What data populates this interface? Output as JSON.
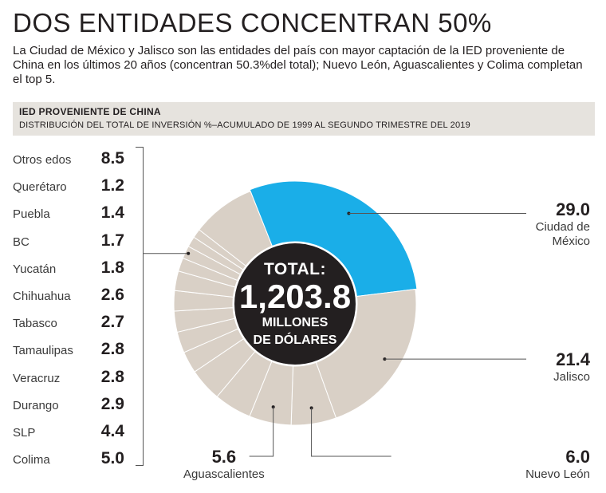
{
  "header": {
    "title": "DOS ENTIDADES CONCENTRAN 50%",
    "subtitle": "La Ciudad de México y Jalisco son las entidades del país con mayor captación de la IED proveniente de China en los últimos 20 años (concentran 50.3%del total); Nuevo León, Aguascalientes y Colima completan el top 5."
  },
  "band": {
    "title": "IED PROVENIENTE DE CHINA",
    "subtitle": "DISTRIBUCIÓN DEL TOTAL DE INVERSIÓN %–ACUMULADO DE 1999 AL SEGUNDO TRIMESTRE DEL 2019"
  },
  "center": {
    "line1": "TOTAL:",
    "line2": "1,203.8",
    "line3": "MILLONES",
    "line4": "DE DÓLARES"
  },
  "colors": {
    "highlight": "#1aaee8",
    "slice": "#d9d0c6",
    "center": "#231f20",
    "stroke": "#ffffff"
  },
  "chart_data": {
    "type": "pie",
    "unit": "%",
    "slices": [
      {
        "label": "Ciudad de México",
        "value": 29.0,
        "display": "29.0"
      },
      {
        "label": "Jalisco",
        "value": 21.4,
        "display": "21.4"
      },
      {
        "label": "Nuevo León",
        "value": 6.0,
        "display": "6.0"
      },
      {
        "label": "Aguascalientes",
        "value": 5.6,
        "display": "5.6"
      },
      {
        "label": "Colima",
        "value": 5.0,
        "display": "5.0"
      },
      {
        "label": "SLP",
        "value": 4.4,
        "display": "4.4"
      },
      {
        "label": "Durango",
        "value": 2.9,
        "display": "2.9"
      },
      {
        "label": "Veracruz",
        "value": 2.8,
        "display": "2.8"
      },
      {
        "label": "Tamaulipas",
        "value": 2.8,
        "display": "2.8"
      },
      {
        "label": "Tabasco",
        "value": 2.7,
        "display": "2.7"
      },
      {
        "label": "Chihuahua",
        "value": 2.6,
        "display": "2.6"
      },
      {
        "label": "Yucatán",
        "value": 1.8,
        "display": "1.8"
      },
      {
        "label": "BC",
        "value": 1.7,
        "display": "1.7"
      },
      {
        "label": "Puebla",
        "value": 1.4,
        "display": "1.4"
      },
      {
        "label": "Querétaro",
        "value": 1.2,
        "display": "1.2"
      },
      {
        "label": "Otros edos",
        "value": 8.5,
        "display": "8.5"
      }
    ],
    "callouts": [
      {
        "value": "29.0",
        "label_lines": [
          "Ciudad de",
          "México"
        ]
      },
      {
        "value": "21.4",
        "label_lines": [
          "Jalisco"
        ]
      },
      {
        "value": "6.0",
        "label_lines": [
          "Nuevo León"
        ]
      },
      {
        "value": "5.6",
        "label_lines": [
          "Aguascalientes"
        ]
      }
    ],
    "side_list": [
      {
        "label": "Otros edos",
        "value": "8.5"
      },
      {
        "label": "Querétaro",
        "value": "1.2"
      },
      {
        "label": "Puebla",
        "value": "1.4"
      },
      {
        "label": "BC",
        "value": "1.7"
      },
      {
        "label": "Yucatán",
        "value": "1.8"
      },
      {
        "label": "Chihuahua",
        "value": "2.6"
      },
      {
        "label": "Tabasco",
        "value": "2.7"
      },
      {
        "label": "Tamaulipas",
        "value": "2.8"
      },
      {
        "label": "Veracruz",
        "value": "2.8"
      },
      {
        "label": "Durango",
        "value": "2.9"
      },
      {
        "label": "SLP",
        "value": "4.4"
      },
      {
        "label": "Colima",
        "value": "5.0"
      }
    ]
  }
}
